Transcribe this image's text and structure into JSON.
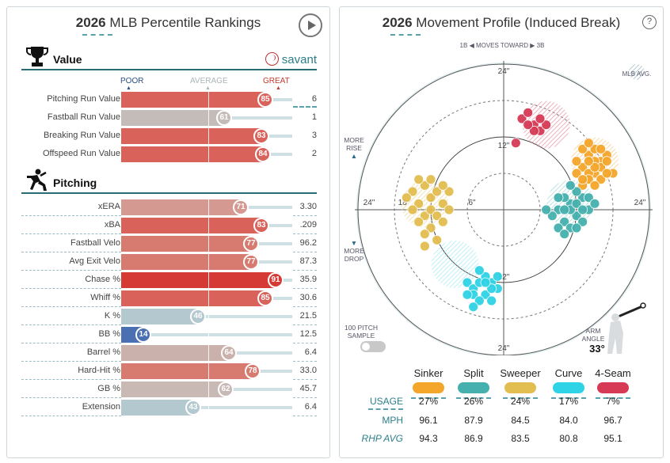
{
  "left": {
    "title_year": "2026",
    "title_rest": "MLB Percentile Rankings",
    "value_section": "Value",
    "pitching_section": "Pitching",
    "savant_label": "savant",
    "scale": {
      "poor": "POOR",
      "average": "AVERAGE",
      "great": "GREAT"
    },
    "value_rows": [
      {
        "label": "Pitching Run Value",
        "pct": 85,
        "value": "6",
        "color": "#d9625b"
      },
      {
        "label": "Fastball Run Value",
        "pct": 61,
        "value": "1",
        "color": "#c4bcb9"
      },
      {
        "label": "Breaking Run Value",
        "pct": 83,
        "value": "3",
        "color": "#d9625b"
      },
      {
        "label": "Offspeed Run Value",
        "pct": 84,
        "value": "2",
        "color": "#d9625b"
      }
    ],
    "pitching_rows": [
      {
        "label": "xERA",
        "pct": 71,
        "value": "3.30",
        "color": "#d49a91"
      },
      {
        "label": "xBA",
        "pct": 83,
        "value": ".209",
        "color": "#d9625b"
      },
      {
        "label": "Fastball Velo",
        "pct": 77,
        "value": "96.2",
        "color": "#d77b70"
      },
      {
        "label": "Avg Exit Velo",
        "pct": 77,
        "value": "87.3",
        "color": "#d77b70"
      },
      {
        "label": "Chase %",
        "pct": 91,
        "value": "35.9",
        "color": "#d63a35"
      },
      {
        "label": "Whiff %",
        "pct": 85,
        "value": "30.6",
        "color": "#d9625b"
      },
      {
        "label": "K %",
        "pct": 46,
        "value": "21.5",
        "color": "#b3c9cf"
      },
      {
        "label": "BB %",
        "pct": 14,
        "value": "12.5",
        "color": "#4b6fb3"
      },
      {
        "label": "Barrel %",
        "pct": 64,
        "value": "6.4",
        "color": "#cbb1ab"
      },
      {
        "label": "Hard-Hit %",
        "pct": 78,
        "value": "33.0",
        "color": "#d77b70"
      },
      {
        "label": "GB %",
        "pct": 62,
        "value": "45.7",
        "color": "#c9b9b4"
      },
      {
        "label": "Extension",
        "pct": 43,
        "value": "6.4",
        "color": "#b3c9cf"
      }
    ]
  },
  "right": {
    "title_year": "2026",
    "title_rest": "Movement Profile (Induced Break)",
    "help_label": "?",
    "moves_toward": "MOVES TOWARD",
    "first_base": "1B",
    "third_base": "3B",
    "mlb_avg": "MLB AVG.",
    "more_rise": [
      "MORE",
      "RISE"
    ],
    "more_drop": [
      "MORE",
      "DROP"
    ],
    "pitch_sample": [
      "100 PITCH",
      "SAMPLE"
    ],
    "arm_angle_label": [
      "ARM",
      "ANGLE"
    ],
    "arm_angle_value": "33°",
    "ring_labels": {
      "outer": "24\"",
      "mid": "12\"",
      "inner": "6\"",
      "h_mid": "18\""
    },
    "pitches": [
      {
        "name": "Sinker",
        "color": "#f4a62a"
      },
      {
        "name": "Split",
        "color": "#45b0ad"
      },
      {
        "name": "Sweeper",
        "color": "#e2bd50"
      },
      {
        "name": "Curve",
        "color": "#2fd3e6"
      },
      {
        "name": "4-Seam",
        "color": "#d63a55"
      }
    ],
    "table": {
      "usage_label": "USAGE",
      "mph_label": "MPH",
      "rhp_label": "RHP AVG",
      "usage": [
        "27%",
        "26%",
        "24%",
        "17%",
        "7%"
      ],
      "mph": [
        "96.1",
        "87.9",
        "84.5",
        "84.0",
        "96.7"
      ],
      "rhp_avg": [
        "94.3",
        "86.9",
        "83.5",
        "80.8",
        "95.1"
      ]
    },
    "chart_data": {
      "type": "scatter",
      "x_unit": "inches horizontal break",
      "y_unit": "inches induced vertical break",
      "series": [
        {
          "name": "Sinker",
          "color": "#f4a62a",
          "points": [
            [
              14,
              9
            ],
            [
              15,
              10
            ],
            [
              16,
              8
            ],
            [
              13,
              7
            ],
            [
              15,
              6
            ],
            [
              12,
              8
            ],
            [
              14,
              6
            ],
            [
              16,
              7
            ],
            [
              17,
              9
            ],
            [
              13,
              10
            ],
            [
              15,
              8
            ],
            [
              14,
              11
            ],
            [
              16,
              10
            ],
            [
              12,
              6
            ],
            [
              14,
              5
            ],
            [
              16,
              5
            ],
            [
              18,
              6
            ],
            [
              13,
              4
            ],
            [
              15,
              4
            ],
            [
              17,
              8
            ],
            [
              15,
              7
            ],
            [
              13,
              5
            ],
            [
              17,
              6
            ],
            [
              14,
              8
            ]
          ]
        },
        {
          "name": "Split",
          "color": "#45b0ad",
          "points": [
            [
              10,
              -2
            ],
            [
              11,
              1
            ],
            [
              12,
              -1
            ],
            [
              13,
              2
            ],
            [
              9,
              0
            ],
            [
              11,
              -3
            ],
            [
              14,
              0
            ],
            [
              12,
              3
            ],
            [
              10,
              2
            ],
            [
              8,
              -1
            ],
            [
              13,
              -2
            ],
            [
              11,
              0
            ],
            [
              9,
              -3
            ],
            [
              12,
              1
            ],
            [
              10,
              -4
            ],
            [
              14,
              2
            ],
            [
              7,
              0
            ],
            [
              11,
              4
            ],
            [
              13,
              0
            ],
            [
              12,
              -3
            ],
            [
              15,
              1
            ],
            [
              9,
              2
            ],
            [
              10,
              0
            ]
          ]
        },
        {
          "name": "Sweeper",
          "color": "#e2bd50",
          "points": [
            [
              -13,
              4
            ],
            [
              -12,
              2
            ],
            [
              -14,
              1
            ],
            [
              -11,
              3
            ],
            [
              -15,
              3
            ],
            [
              -13,
              -1
            ],
            [
              -12,
              0
            ],
            [
              -10,
              1
            ],
            [
              -14,
              -2
            ],
            [
              -11,
              -1
            ],
            [
              -15,
              0
            ],
            [
              -12,
              -3
            ],
            [
              -10,
              -2
            ],
            [
              -13,
              -4
            ],
            [
              -11,
              -5
            ],
            [
              -9,
              3
            ],
            [
              -14,
              5
            ],
            [
              -16,
              2
            ],
            [
              -12,
              5
            ],
            [
              -10,
              4
            ],
            [
              -9,
              0
            ],
            [
              -13,
              -6
            ]
          ]
        },
        {
          "name": "Curve",
          "color": "#2fd3e6",
          "points": [
            [
              -6,
              -12
            ],
            [
              -5,
              -13
            ],
            [
              -4,
              -12
            ],
            [
              -3,
              -14
            ],
            [
              -2,
              -12
            ],
            [
              -1,
              -13
            ],
            [
              -5,
              -14
            ],
            [
              -4,
              -15
            ],
            [
              -3,
              -11
            ],
            [
              -2,
              -13
            ],
            [
              -6,
              -14
            ],
            [
              -1,
              -11
            ],
            [
              -5,
              -16
            ],
            [
              -3,
              -12
            ],
            [
              -4,
              -10
            ],
            [
              -2,
              -15
            ]
          ]
        },
        {
          "name": "4-Seam",
          "color": "#d63a55",
          "points": [
            [
              3,
              15
            ],
            [
              5,
              14
            ],
            [
              6,
              13
            ],
            [
              4,
              16
            ],
            [
              7,
              14
            ],
            [
              5,
              13
            ],
            [
              2,
              11
            ],
            [
              6,
              15
            ],
            [
              4,
              14
            ]
          ]
        }
      ],
      "mlb_avg_zones": [
        {
          "name": "Sinker",
          "x": 15,
          "y": 8
        },
        {
          "name": "Split",
          "x": 11,
          "y": 1
        },
        {
          "name": "Sweeper",
          "x": -13,
          "y": 1
        },
        {
          "name": "Curve",
          "x": -8,
          "y": -9
        },
        {
          "name": "4-Seam",
          "x": 7,
          "y": 14
        }
      ],
      "xlim": [
        -24,
        24
      ],
      "ylim": [
        -24,
        24
      ]
    }
  }
}
